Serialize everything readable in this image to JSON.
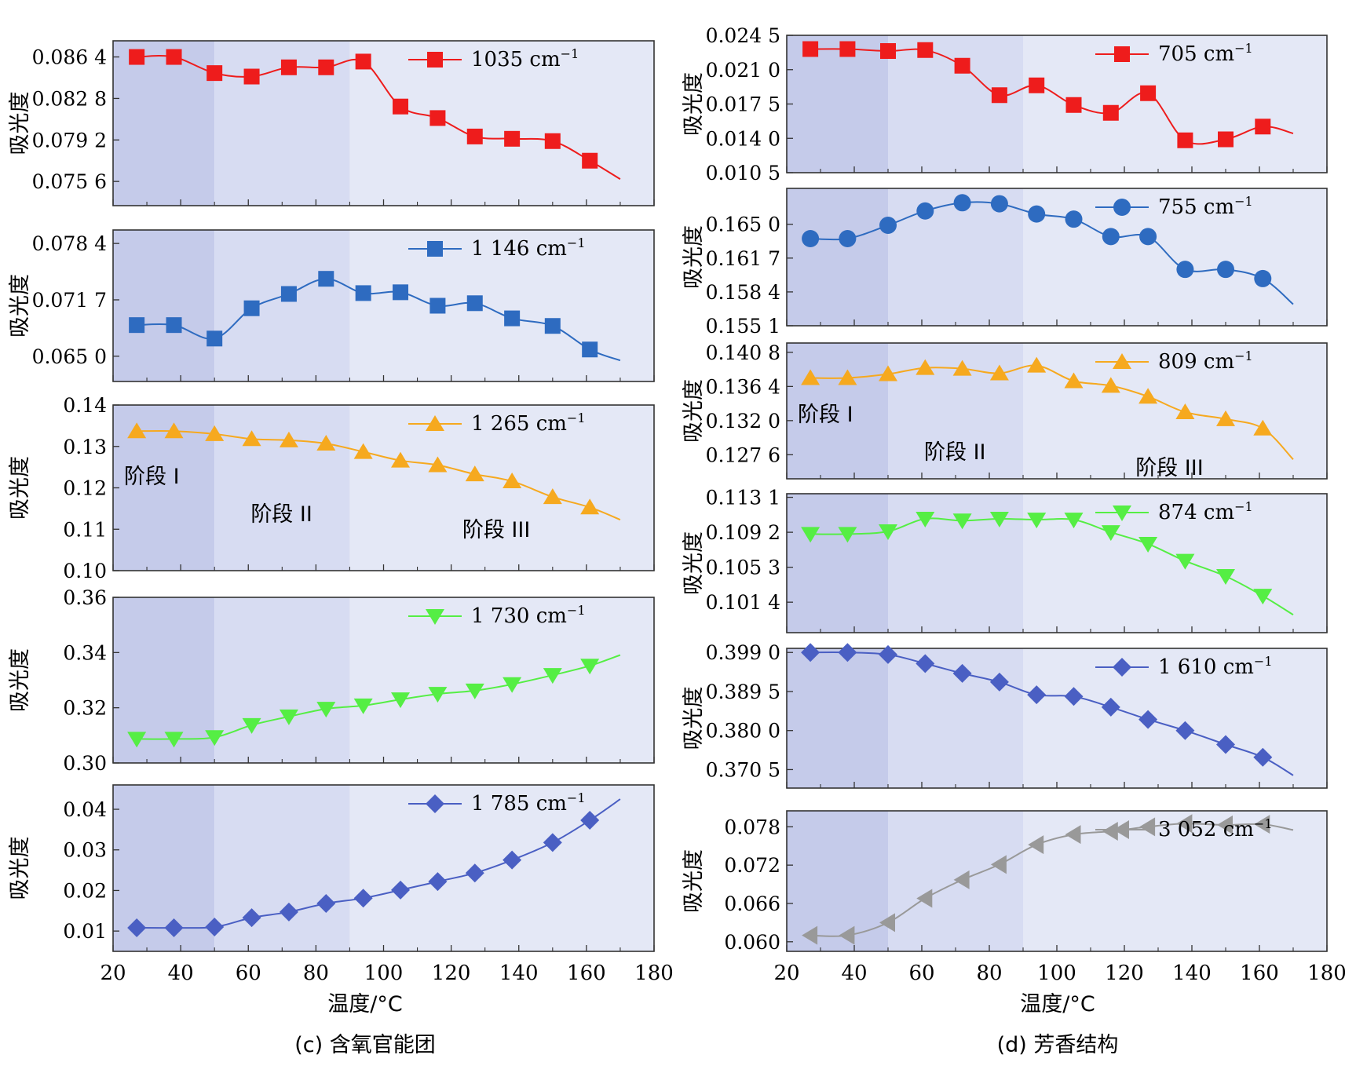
{
  "colors": {
    "stage1": "#c5cbea",
    "stage2": "#d7dcf2",
    "stage3": "#e4e8f6",
    "frame": "#333333"
  },
  "x_axis": {
    "label": "温度/°C",
    "ticks": [
      20,
      40,
      60,
      80,
      100,
      120,
      140,
      160,
      180
    ],
    "range": [
      20,
      180
    ]
  },
  "temperatures": [
    27,
    38,
    50,
    61,
    72,
    83,
    94,
    105,
    116,
    127,
    138,
    150,
    161,
    170
  ],
  "stage_boundaries": [
    50,
    90
  ],
  "stage_labels": [
    "阶段 I",
    "阶段 II",
    "阶段 III"
  ],
  "y_label": "吸光度",
  "panels": [
    {
      "caption": "(c) 含氧官能团"
    },
    {
      "caption": "(d) 芳香结构"
    }
  ],
  "chart_data": [
    {
      "type": "line",
      "panel": "c",
      "series_name": "1035 cm",
      "color": "#ee1c1c",
      "marker": "square",
      "ylim": [
        0.0735,
        0.0878
      ],
      "yticks": [
        "0.075 6",
        "0.079 2",
        "0.082 8",
        "0.086 4"
      ],
      "ytick_values": [
        0.0756,
        0.0792,
        0.0828,
        0.0864
      ],
      "values": [
        0.0864,
        0.0864,
        0.085,
        0.0847,
        0.0855,
        0.0855,
        0.086,
        0.0821,
        0.0811,
        0.0795,
        0.0793,
        0.0791,
        0.0774,
        0.0758
      ]
    },
    {
      "type": "line",
      "panel": "c",
      "series_name": "1 146 cm",
      "color": "#2e6bc0",
      "marker": "square",
      "ylim": [
        0.062,
        0.08
      ],
      "yticks": [
        "0.065 0",
        "0.071 7",
        "0.078 4"
      ],
      "ytick_values": [
        0.065,
        0.0717,
        0.0784
      ],
      "values": [
        0.0687,
        0.0687,
        0.0671,
        0.0707,
        0.0724,
        0.0742,
        0.0725,
        0.0726,
        0.071,
        0.0713,
        0.0695,
        0.0686,
        0.0658,
        0.0645
      ]
    },
    {
      "type": "line",
      "panel": "c",
      "series_name": "1 265 cm",
      "color": "#f6a91f",
      "marker": "triangle-up",
      "ylim": [
        0.1,
        0.14
      ],
      "yticks": [
        "0.10",
        "0.11",
        "0.12",
        "0.13",
        "0.14"
      ],
      "ytick_values": [
        0.1,
        0.11,
        0.12,
        0.13,
        0.14
      ],
      "values": [
        0.1337,
        0.1337,
        0.133,
        0.1318,
        0.1315,
        0.1307,
        0.1287,
        0.1266,
        0.1255,
        0.1233,
        0.1216,
        0.1178,
        0.1153,
        0.1123
      ]
    },
    {
      "type": "line",
      "panel": "c",
      "series_name": "1 730 cm",
      "color": "#55ee44",
      "marker": "triangle-down",
      "ylim": [
        0.3,
        0.36
      ],
      "yticks": [
        "0.30",
        "0.32",
        "0.34",
        "0.36"
      ],
      "ytick_values": [
        0.3,
        0.32,
        0.34,
        0.36
      ],
      "values": [
        0.3087,
        0.3087,
        0.3093,
        0.3137,
        0.3168,
        0.3196,
        0.3208,
        0.323,
        0.325,
        0.3262,
        0.3285,
        0.3318,
        0.3352,
        0.3391
      ]
    },
    {
      "type": "line",
      "panel": "c",
      "series_name": "1 785 cm",
      "color": "#4a5fc3",
      "marker": "diamond",
      "ylim": [
        0.005,
        0.046
      ],
      "yticks": [
        "0.01",
        "0.02",
        "0.03",
        "0.04"
      ],
      "ytick_values": [
        0.01,
        0.02,
        0.03,
        0.04
      ],
      "values": [
        0.0108,
        0.0108,
        0.011,
        0.0133,
        0.0147,
        0.0168,
        0.0181,
        0.0201,
        0.0222,
        0.0243,
        0.0275,
        0.0318,
        0.0373,
        0.0425
      ]
    },
    {
      "type": "line",
      "panel": "d",
      "series_name": "705 cm",
      "color": "#ee1c1c",
      "marker": "square",
      "ylim": [
        0.0105,
        0.0245
      ],
      "yticks": [
        "0.010 5",
        "0.014 0",
        "0.017 5",
        "0.021 0",
        "0.024 5"
      ],
      "ytick_values": [
        0.0105,
        0.014,
        0.0175,
        0.021,
        0.0245
      ],
      "values": [
        0.0231,
        0.0231,
        0.0229,
        0.023,
        0.0214,
        0.0184,
        0.0194,
        0.0174,
        0.0166,
        0.0186,
        0.0138,
        0.0139,
        0.0152,
        0.0145
      ]
    },
    {
      "type": "line",
      "panel": "d",
      "series_name": "755 cm",
      "color": "#2e6bc0",
      "marker": "circle",
      "ylim": [
        0.1551,
        0.1685
      ],
      "yticks": [
        "0.155 1",
        "0.158 4",
        "0.161 7",
        "0.165 0"
      ],
      "ytick_values": [
        0.1551,
        0.1584,
        0.1617,
        0.165
      ],
      "values": [
        0.1636,
        0.1636,
        0.1649,
        0.1663,
        0.1671,
        0.167,
        0.166,
        0.1655,
        0.1638,
        0.1638,
        0.1606,
        0.1606,
        0.1597,
        0.1572
      ]
    },
    {
      "type": "line",
      "panel": "d",
      "series_name": "809 cm",
      "color": "#f6a91f",
      "marker": "triangle-up",
      "ylim": [
        0.1245,
        0.142
      ],
      "yticks": [
        "0.127 6",
        "0.132 0",
        "0.136 4",
        "0.140 8"
      ],
      "ytick_values": [
        0.1276,
        0.132,
        0.1364,
        0.1408
      ],
      "values": [
        0.1375,
        0.1375,
        0.138,
        0.1388,
        0.1387,
        0.1381,
        0.1391,
        0.1371,
        0.1365,
        0.1351,
        0.1331,
        0.1322,
        0.131,
        0.127
      ]
    },
    {
      "type": "line",
      "panel": "d",
      "series_name": "874 cm",
      "color": "#55ee44",
      "marker": "triangle-down",
      "ylim": [
        0.098,
        0.1135
      ],
      "yticks": [
        "0.101 4",
        "0.105 3",
        "0.109 2",
        "0.113 1"
      ],
      "ytick_values": [
        0.1014,
        0.1053,
        0.1092,
        0.1131
      ],
      "values": [
        0.109,
        0.109,
        0.1093,
        0.1107,
        0.1105,
        0.1107,
        0.1106,
        0.1106,
        0.1092,
        0.1079,
        0.106,
        0.1043,
        0.1021,
        0.1
      ]
    },
    {
      "type": "line",
      "panel": "d",
      "series_name": "1 610 cm",
      "color": "#4a5fc3",
      "marker": "diamond",
      "ylim": [
        0.366,
        0.4
      ],
      "yticks": [
        "0.370 5",
        "0.380 0",
        "0.389 5",
        "0.399 0"
      ],
      "ytick_values": [
        0.3705,
        0.38,
        0.3895,
        0.399
      ],
      "values": [
        0.399,
        0.399,
        0.3985,
        0.3963,
        0.3939,
        0.3918,
        0.3887,
        0.3883,
        0.3857,
        0.3827,
        0.38,
        0.3766,
        0.3735,
        0.3691
      ]
    },
    {
      "type": "line",
      "panel": "d",
      "series_name": "3 052 cm",
      "color": "#999999",
      "marker": "triangle-left",
      "ylim": [
        0.0585,
        0.0805
      ],
      "yticks": [
        "0.060",
        "0.066",
        "0.072",
        "0.078"
      ],
      "ytick_values": [
        0.06,
        0.066,
        0.072,
        0.078
      ],
      "values": [
        0.061,
        0.061,
        0.063,
        0.0668,
        0.0697,
        0.0721,
        0.0752,
        0.0768,
        0.0773,
        0.078,
        0.0785,
        0.0783,
        0.0784,
        0.0775
      ]
    }
  ]
}
